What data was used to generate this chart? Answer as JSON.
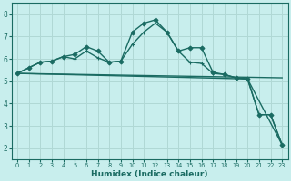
{
  "xlabel": "Humidex (Indice chaleur)",
  "background_color": "#c8eeed",
  "grid_color": "#b0d8d5",
  "line_color": "#1a6b62",
  "xlim": [
    -0.5,
    23.5
  ],
  "ylim": [
    1.5,
    8.5
  ],
  "yticks": [
    2,
    3,
    4,
    5,
    6,
    7,
    8
  ],
  "xticks": [
    0,
    1,
    2,
    3,
    4,
    5,
    6,
    7,
    8,
    9,
    10,
    11,
    12,
    13,
    14,
    15,
    16,
    17,
    18,
    19,
    20,
    21,
    22,
    23
  ],
  "series": [
    {
      "x": [
        0,
        1,
        2,
        3,
        4,
        5,
        6,
        7,
        8,
        9,
        10,
        11,
        12,
        13,
        14,
        15,
        16,
        17,
        18,
        19,
        20,
        21,
        22,
        23
      ],
      "y": [
        5.35,
        5.6,
        5.85,
        5.9,
        6.1,
        6.2,
        6.55,
        6.35,
        5.85,
        5.9,
        7.2,
        7.6,
        7.75,
        7.2,
        6.35,
        6.5,
        6.5,
        5.4,
        5.3,
        5.15,
        5.1,
        3.5,
        3.5,
        2.15
      ],
      "marker": "D",
      "markersize": 2.5,
      "linewidth": 1.0
    },
    {
      "x": [
        0,
        1,
        2,
        3,
        4,
        5,
        6,
        7,
        8,
        9,
        10,
        11,
        12,
        13,
        14,
        15,
        16,
        17,
        18,
        19,
        20,
        21,
        22,
        23
      ],
      "y": [
        5.35,
        5.6,
        5.85,
        5.9,
        6.1,
        6.0,
        6.35,
        6.05,
        5.85,
        5.9,
        6.65,
        7.2,
        7.6,
        7.2,
        6.35,
        5.85,
        5.8,
        5.35,
        5.3,
        5.15,
        5.1,
        3.5,
        3.5,
        2.15
      ],
      "marker": "+",
      "markersize": 3.5,
      "linewidth": 1.0
    },
    {
      "x": [
        0,
        23
      ],
      "y": [
        5.35,
        5.15
      ],
      "marker": null,
      "markersize": 0,
      "linewidth": 1.0
    },
    {
      "x": [
        0,
        20,
        23
      ],
      "y": [
        5.35,
        5.1,
        2.15
      ],
      "marker": null,
      "markersize": 0,
      "linewidth": 1.0
    }
  ]
}
